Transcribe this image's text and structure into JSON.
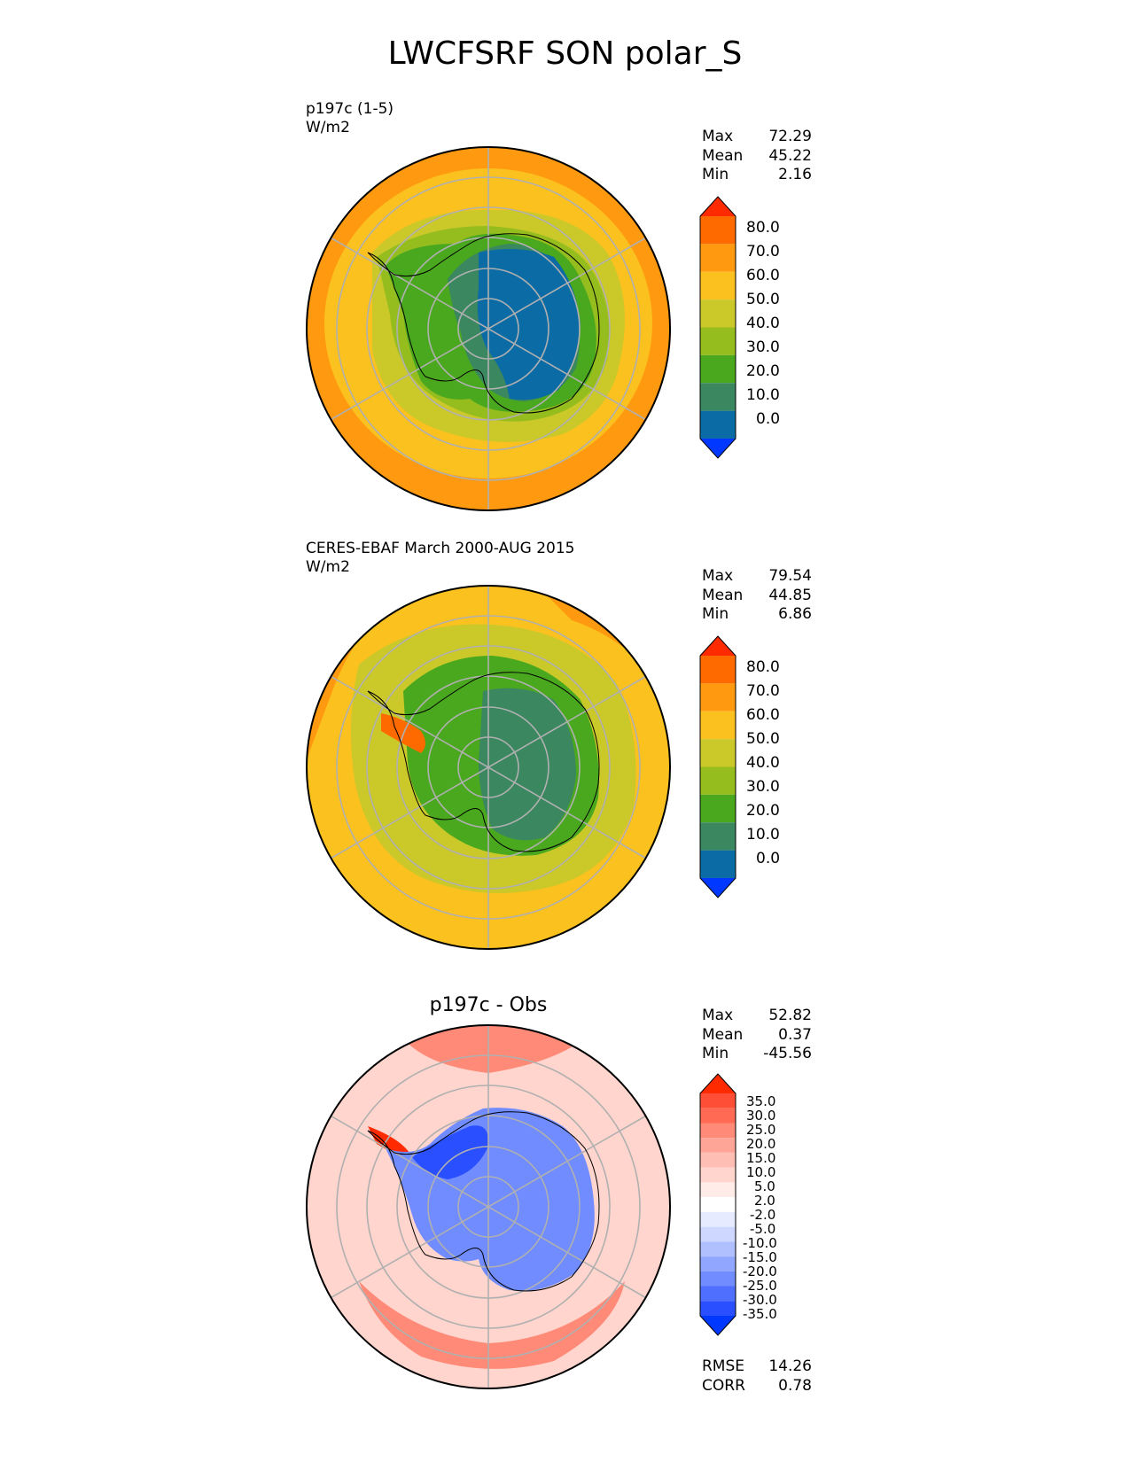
{
  "title": "LWCFSRF SON polar_S",
  "panels": [
    {
      "id": "test",
      "label_line1": "p197c (1-5)",
      "label_line2": "W/m2",
      "stats": [
        {
          "name": "Max",
          "value": "72.29"
        },
        {
          "name": "Mean",
          "value": "45.22"
        },
        {
          "name": "Min",
          "value": "2.16"
        }
      ],
      "colorbar": {
        "levels": [
          "80.0",
          "70.0",
          "60.0",
          "50.0",
          "40.0",
          "30.0",
          "20.0",
          "10.0",
          "0.0"
        ],
        "colors": [
          "#ff2a00",
          "#ff6a00",
          "#ff9a10",
          "#fbc11f",
          "#cbc82a",
          "#94bd1d",
          "#4aa81e",
          "#3a8760",
          "#0b6ba5",
          "#0038ff"
        ]
      }
    },
    {
      "id": "ref",
      "label_line1": "CERES-EBAF March 2000-AUG 2015",
      "label_line2": "W/m2",
      "stats": [
        {
          "name": "Max",
          "value": "79.54"
        },
        {
          "name": "Mean",
          "value": "44.85"
        },
        {
          "name": "Min",
          "value": "6.86"
        }
      ],
      "colorbar": {
        "levels": [
          "80.0",
          "70.0",
          "60.0",
          "50.0",
          "40.0",
          "30.0",
          "20.0",
          "10.0",
          "0.0"
        ],
        "colors": [
          "#ff2a00",
          "#ff6a00",
          "#ff9a10",
          "#fbc11f",
          "#cbc82a",
          "#94bd1d",
          "#4aa81e",
          "#3a8760",
          "#0b6ba5",
          "#0038ff"
        ]
      }
    },
    {
      "id": "diff",
      "title": "p197c - Obs",
      "stats": [
        {
          "name": "Max",
          "value": "52.82"
        },
        {
          "name": "Mean",
          "value": "0.37"
        },
        {
          "name": "Min",
          "value": "-45.56"
        }
      ],
      "metrics": [
        {
          "name": "RMSE",
          "value": "14.26"
        },
        {
          "name": "CORR",
          "value": "0.78"
        }
      ],
      "colorbar": {
        "levels": [
          "35.0",
          "30.0",
          "25.0",
          "20.0",
          "15.0",
          "10.0",
          "5.0",
          "2.0",
          "-2.0",
          "-5.0",
          "-10.0",
          "-15.0",
          "-20.0",
          "-25.0",
          "-30.0",
          "-35.0"
        ],
        "colors": [
          "#ff2a00",
          "#ff4e36",
          "#ff6a55",
          "#ff8a78",
          "#ffa597",
          "#ffbeb3",
          "#ffd5cd",
          "#ffebe7",
          "#ffffff",
          "#e6ebff",
          "#cdd7ff",
          "#b0c0ff",
          "#90a6ff",
          "#708cff",
          "#4f6fff",
          "#2a4fff",
          "#0038ff"
        ]
      }
    }
  ],
  "map_colors": {
    "ocean_outer": "#ff9a10",
    "ocean_mid": "#fbc11f",
    "ocean_inner": "#cbc82a",
    "coast_band": "#94bd1d",
    "land_outer": "#4aa81e",
    "land_mid": "#3a8760",
    "land_inner": "#0b6ba5",
    "diff_outer": "#ffd5cd",
    "diff_ring": "#ff8a78",
    "diff_land": "#708cff",
    "diff_core": "#2a4fff"
  }
}
